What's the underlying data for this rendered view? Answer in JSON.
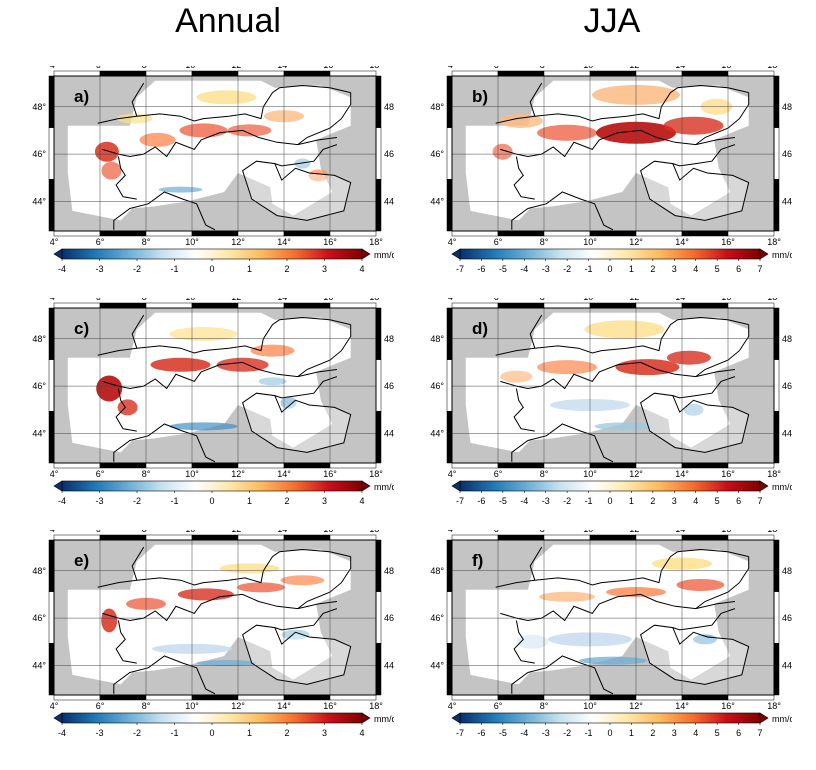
{
  "columns": {
    "left": "Annual",
    "right": "JJA"
  },
  "lon_ticks": [
    "4°",
    "6°",
    "8°",
    "10°",
    "12°",
    "14°",
    "16°",
    "18°"
  ],
  "lat_ticks": [
    "44°",
    "46°",
    "48°"
  ],
  "scales": {
    "annual": {
      "ticks": [
        "-4",
        "-3",
        "-2",
        "-1",
        "0",
        "1",
        "2",
        "3",
        "4"
      ],
      "unit": "mm/day",
      "min": -4,
      "max": 4
    },
    "jja": {
      "ticks": [
        "-7",
        "-6",
        "-5",
        "-4",
        "-3",
        "-2",
        "-1",
        "0",
        "1",
        "2",
        "3",
        "4",
        "5",
        "6",
        "7"
      ],
      "unit": "mm/day",
      "min": -7,
      "max": 7
    }
  },
  "colors": {
    "land_outside": "#c4c4c4",
    "scale": [
      "#08306b",
      "#1f78b4",
      "#6baed6",
      "#c6e2f0",
      "#ffffff",
      "#fde9a9",
      "#fdb95e",
      "#f46d2e",
      "#c8101a",
      "#7f0000"
    ]
  },
  "panels": [
    {
      "label": "a)",
      "column": "left",
      "scale": "annual"
    },
    {
      "label": "b)",
      "column": "right",
      "scale": "jja"
    },
    {
      "label": "c)",
      "column": "left",
      "scale": "annual"
    },
    {
      "label": "d)",
      "column": "right",
      "scale": "jja"
    },
    {
      "label": "e)",
      "column": "left",
      "scale": "annual"
    },
    {
      "label": "f)",
      "column": "right",
      "scale": "jja"
    }
  ]
}
